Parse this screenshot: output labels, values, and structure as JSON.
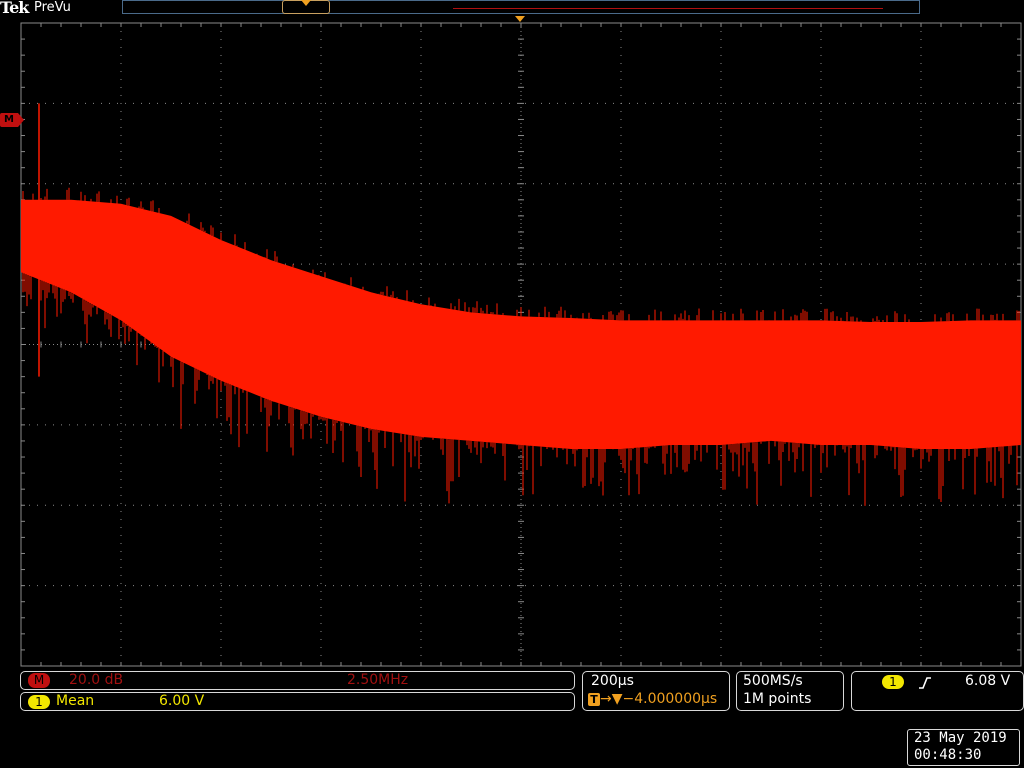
{
  "header": {
    "brand": "Tek",
    "mode": "PreVu"
  },
  "channel_markers": {
    "math_label": "M"
  },
  "math_panel": {
    "badge": "M",
    "scale": "20.0 dB",
    "center_frequency": "2.50MHz"
  },
  "measurement_panel": {
    "badge": "1",
    "label": "Mean",
    "value": "6.00 V"
  },
  "horizontal_panel": {
    "time_per_div": "200µs",
    "trigger_icon": "T",
    "position": "→▼−4.000000µs"
  },
  "acquisition_panel": {
    "sample_rate": "500MS/s",
    "record_length": "1M points"
  },
  "trigger_panel": {
    "source_badge": "1",
    "slope_icon": "rising-edge-icon",
    "level": "6.08 V"
  },
  "datetime": {
    "date": "23 May 2019",
    "time": "00:48:30"
  },
  "colors": {
    "trace": "#ff1a00",
    "grid": "#8a8a8a",
    "ch1": "#f2e600",
    "math": "#c01010"
  },
  "chart_data": {
    "type": "line",
    "title": "",
    "xlabel": "",
    "ylabel": "",
    "grid": true,
    "x_divisions": 10,
    "y_divisions": 8,
    "series": [
      {
        "x_div": [
          0.0,
          0.5,
          1.0,
          1.5,
          2.0,
          2.5,
          3.0,
          3.5,
          4.0,
          4.5,
          5.0,
          5.5,
          6.0,
          6.5,
          7.0,
          7.5,
          8.0,
          8.5,
          9.0,
          9.5,
          10.0
        ],
        "upper_div": [
          1.8,
          1.8,
          1.75,
          1.6,
          1.3,
          1.05,
          0.85,
          0.65,
          0.5,
          0.4,
          0.35,
          0.33,
          0.3,
          0.3,
          0.3,
          0.3,
          0.3,
          0.28,
          0.28,
          0.3,
          0.3
        ],
        "lower_div": [
          0.9,
          0.65,
          0.3,
          -0.15,
          -0.45,
          -0.7,
          -0.9,
          -1.05,
          -1.15,
          -1.2,
          -1.25,
          -1.3,
          -1.3,
          -1.25,
          -1.25,
          -1.2,
          -1.25,
          -1.25,
          -1.3,
          -1.3,
          -1.25
        ]
      }
    ]
  }
}
